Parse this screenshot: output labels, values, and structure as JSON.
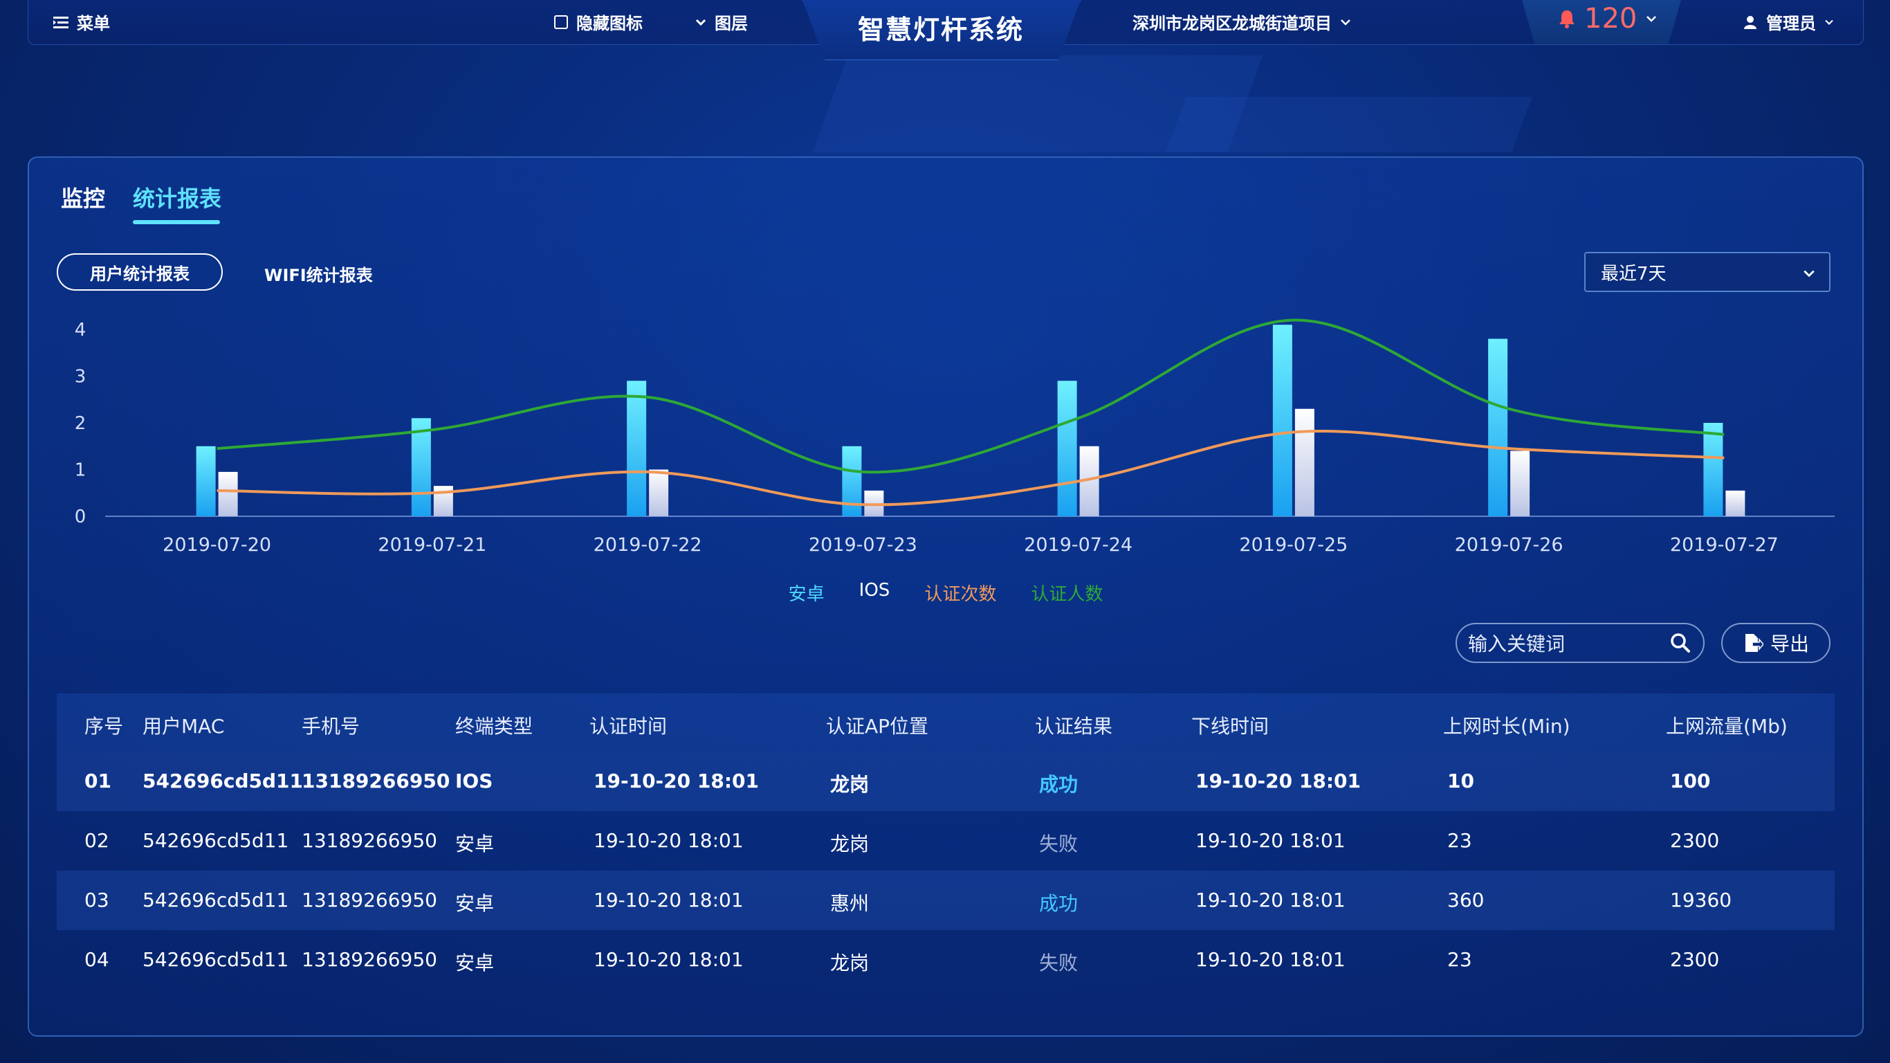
{
  "header": {
    "menu_label": "菜单",
    "hide_icons_label": "隐藏图标",
    "layers_label": "图层",
    "title": "智慧灯杆系统",
    "project": "深圳市龙岗区龙城街道项目",
    "alarm_count": "120",
    "user": "管理员"
  },
  "tabs": [
    {
      "label": "监控",
      "active": false
    },
    {
      "label": "统计报表",
      "active": true
    }
  ],
  "subtabs": [
    {
      "label": "用户统计报表",
      "active": true
    },
    {
      "label": "WIFI统计报表",
      "active": false
    }
  ],
  "range_select": {
    "value": "最近7天"
  },
  "chart_data": {
    "type": "bar",
    "categories": [
      "2019-07-20",
      "2019-07-21",
      "2019-07-22",
      "2019-07-23",
      "2019-07-24",
      "2019-07-25",
      "2019-07-26",
      "2019-07-27"
    ],
    "ylim": [
      0,
      4
    ],
    "yticks": [
      "0",
      "1",
      "2",
      "3",
      "4"
    ],
    "series": [
      {
        "name": "安卓",
        "type": "bar",
        "color": "#4fd8ff",
        "values": [
          1.5,
          2.1,
          2.9,
          1.5,
          2.9,
          4.1,
          3.8,
          2.0
        ]
      },
      {
        "name": "IOS",
        "type": "bar",
        "color": "#e8ecf8",
        "values": [
          0.95,
          0.65,
          1.0,
          0.55,
          1.5,
          2.3,
          1.4,
          0.55
        ]
      },
      {
        "name": "认证次数",
        "type": "line",
        "color": "#f09a5a",
        "values": [
          0.55,
          0.5,
          0.95,
          0.25,
          0.75,
          1.8,
          1.45,
          1.25
        ]
      },
      {
        "name": "认证人数",
        "type": "line",
        "color": "#2ea836",
        "values": [
          1.45,
          1.85,
          2.55,
          0.95,
          2.1,
          4.2,
          2.3,
          1.75
        ]
      }
    ]
  },
  "search": {
    "placeholder": "输入关键词"
  },
  "export_label": "导出",
  "table": {
    "headers": [
      "序号",
      "用户MAC",
      "手机号",
      "终端类型",
      "认证时间",
      "认证AP位置",
      "认证结果",
      "下线时间",
      "上网时长(Min)",
      "上网流量(Mb)"
    ],
    "rows": [
      [
        "01",
        "542696cd5d11",
        "13189266950",
        "IOS",
        "19-10-20 18:01",
        "龙岗",
        "成功",
        "19-10-20 18:01",
        "10",
        "100"
      ],
      [
        "02",
        "542696cd5d11",
        "13189266950",
        "安卓",
        "19-10-20 18:01",
        "龙岗",
        "失败",
        "19-10-20 18:01",
        "23",
        "2300"
      ],
      [
        "03",
        "542696cd5d11",
        "13189266950",
        "安卓",
        "19-10-20 18:01",
        "惠州",
        "成功",
        "19-10-20 18:01",
        "360",
        "19360"
      ],
      [
        "04",
        "542696cd5d11",
        "13189266950",
        "安卓",
        "19-10-20 18:01",
        "龙岗",
        "失败",
        "19-10-20 18:01",
        "23",
        "2300"
      ]
    ]
  }
}
